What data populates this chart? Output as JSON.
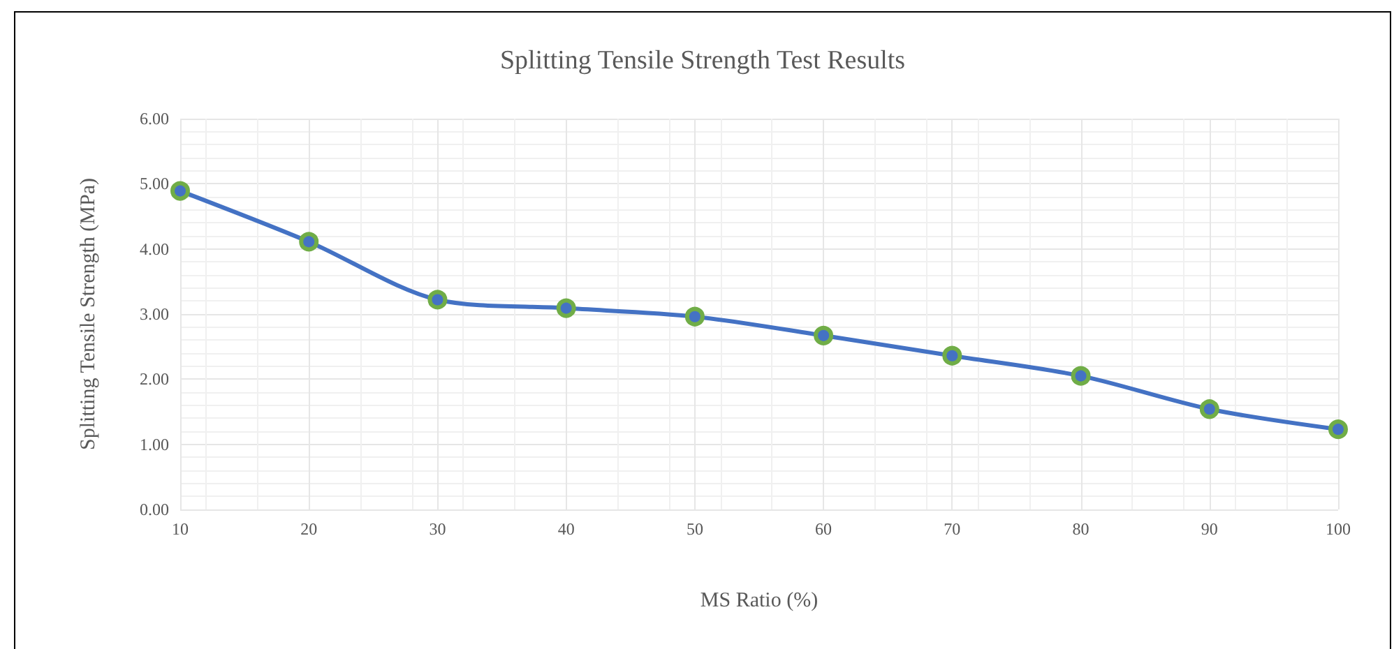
{
  "chart_data": {
    "type": "line",
    "title": "Splitting Tensile Strength Test Results",
    "xlabel": "MS Ratio (%)",
    "ylabel": "Splitting Tensile Strength (MPa)",
    "x": [
      10,
      20,
      30,
      40,
      50,
      60,
      70,
      80,
      90,
      100
    ],
    "series": [
      {
        "color": "#4472c4",
        "values": [
          4.89,
          4.11,
          3.22,
          3.09,
          2.96,
          2.67,
          2.36,
          2.05,
          1.54,
          1.23
        ]
      }
    ],
    "xlim": [
      10,
      100
    ],
    "xticks": [
      10,
      20,
      30,
      40,
      50,
      60,
      70,
      80,
      90,
      100
    ],
    "ylim": [
      0,
      6
    ],
    "yticks": [
      {
        "value": 0,
        "label": "0.00"
      },
      {
        "value": 1,
        "label": "1.00"
      },
      {
        "value": 2,
        "label": "2.00"
      },
      {
        "value": 3,
        "label": "3.00"
      },
      {
        "value": 4,
        "label": "4.00"
      },
      {
        "value": 5,
        "label": "5.00"
      },
      {
        "value": 6,
        "label": "6.00"
      }
    ],
    "grid": true,
    "marker": "circle",
    "line_style": "solid"
  }
}
